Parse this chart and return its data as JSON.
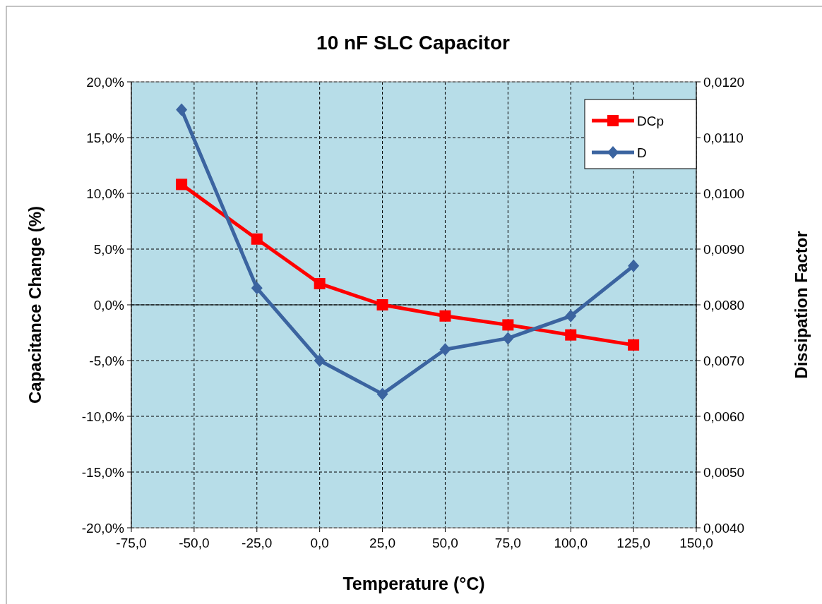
{
  "chart_data": {
    "type": "line",
    "title": "10 nF SLC Capacitor",
    "xlabel": "Temperature (°C)",
    "ylabel": "Capacitance Change (%)",
    "y2label": "Dissipation Factor",
    "x": [
      -55,
      -25,
      0,
      25,
      50,
      75,
      100,
      125
    ],
    "series": [
      {
        "name": "DCp",
        "color": "#ff0000",
        "marker": "square",
        "values": [
          10.8,
          5.9,
          1.9,
          0.0,
          -1.0,
          -1.8,
          -2.7,
          -3.6
        ]
      },
      {
        "name": "D",
        "color": "#3b64a0",
        "marker": "diamond",
        "axis": "y2",
        "values": [
          0.0115,
          0.0083,
          0.007,
          0.0064,
          0.0072,
          0.0074,
          0.0078,
          0.0087
        ]
      }
    ],
    "xlim": [
      -75,
      150
    ],
    "xticks": [
      {
        "value": -75,
        "label": "-75,0"
      },
      {
        "value": -50,
        "label": "-50,0"
      },
      {
        "value": -25,
        "label": "-25,0"
      },
      {
        "value": 0,
        "label": "0,0"
      },
      {
        "value": 25,
        "label": "25,0"
      },
      {
        "value": 50,
        "label": "50,0"
      },
      {
        "value": 75,
        "label": "75,0"
      },
      {
        "value": 100,
        "label": "100,0"
      },
      {
        "value": 125,
        "label": "125,0"
      },
      {
        "value": 150,
        "label": "150,0"
      }
    ],
    "ylim": [
      -20,
      20
    ],
    "yticks": [
      {
        "value": -20,
        "label": "-20,0%"
      },
      {
        "value": -15,
        "label": "-15,0%"
      },
      {
        "value": -10,
        "label": "-10,0%"
      },
      {
        "value": -5,
        "label": "-5,0%"
      },
      {
        "value": 0,
        "label": "0,0%"
      },
      {
        "value": 5,
        "label": "5,0%"
      },
      {
        "value": 10,
        "label": "10,0%"
      },
      {
        "value": 15,
        "label": "15,0%"
      },
      {
        "value": 20,
        "label": "20,0%"
      }
    ],
    "y2lim": [
      0.004,
      0.012
    ],
    "y2ticks": [
      {
        "value": 0.004,
        "label": "0,0040"
      },
      {
        "value": 0.005,
        "label": "0,0050"
      },
      {
        "value": 0.006,
        "label": "0,0060"
      },
      {
        "value": 0.007,
        "label": "0,0070"
      },
      {
        "value": 0.008,
        "label": "0,0080"
      },
      {
        "value": 0.009,
        "label": "0,0090"
      },
      {
        "value": 0.01,
        "label": "0,0100"
      },
      {
        "value": 0.011,
        "label": "0,0110"
      },
      {
        "value": 0.012,
        "label": "0,0120"
      }
    ],
    "grid": true,
    "legend": "top right",
    "line_style": "solid"
  }
}
